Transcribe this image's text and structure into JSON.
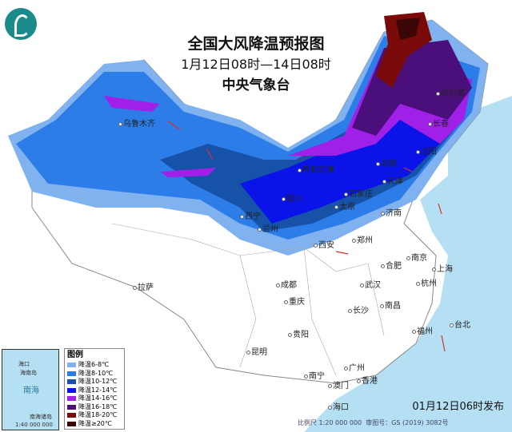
{
  "title": {
    "main": "全国大风降温预报图",
    "period": "1月12日08时—14日08时",
    "agency": "中央气象台"
  },
  "legend": {
    "title": "图例",
    "items": [
      {
        "label": "降温6-8℃",
        "color": "#7fb2ef"
      },
      {
        "label": "降温8-10℃",
        "color": "#2d7de8"
      },
      {
        "label": "降温10-12℃",
        "color": "#1652a8"
      },
      {
        "label": "降温12-14℃",
        "color": "#0a14e8"
      },
      {
        "label": "降温14-16℃",
        "color": "#a020e8"
      },
      {
        "label": "降温16-18℃",
        "color": "#4a0f7a"
      },
      {
        "label": "降温18-20℃",
        "color": "#7a0a0a"
      },
      {
        "label": "降温≥20℃",
        "color": "#3a0606"
      }
    ]
  },
  "inset": {
    "labels": [
      "海口",
      "海南岛",
      "南海",
      "南海诸岛",
      "1:40 000 000"
    ]
  },
  "cities": [
    "乌鲁木齐",
    "银川",
    "西宁",
    "兰州",
    "呼和浩特",
    "哈尔滨",
    "长春",
    "沈阳",
    "北京",
    "天津",
    "石家庄",
    "太原",
    "济南",
    "郑州",
    "西安",
    "合肥",
    "南京",
    "上海",
    "杭州",
    "武汉",
    "成都",
    "重庆",
    "长沙",
    "南昌",
    "福州",
    "台北",
    "贵阳",
    "昆明",
    "拉萨",
    "南宁",
    "广州",
    "澳门",
    "香港",
    "海口"
  ],
  "footer": {
    "issued": "01月12日06时发布",
    "scale": "比例尺 1:20 000 000",
    "map_no": "审图号：GS (2019) 3082号"
  },
  "colors": {
    "sea": "#b5dff2",
    "land": "#ffffff",
    "wind_barb": "#d83030"
  }
}
